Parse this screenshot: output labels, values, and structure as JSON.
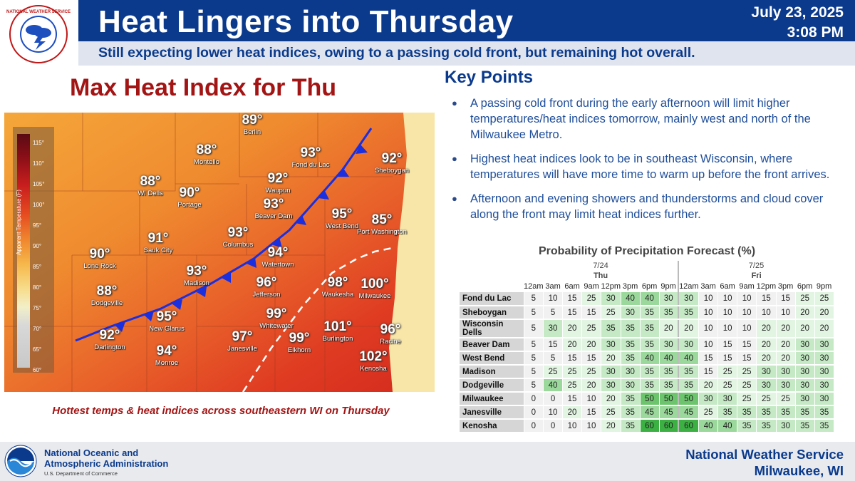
{
  "header": {
    "title": "Heat Lingers into Thursday",
    "date": "July 23, 2025",
    "time": "3:08 PM",
    "subtitle": "Still expecting lower heat indices, owing to a passing cold front, but remaining hot overall.",
    "logo_text": "NATIONAL WEATHER SERVICE"
  },
  "map": {
    "title": "Max Heat Index for Thu",
    "caption": "Hottest temps & heat indices across southeastern WI on Thursday",
    "legend": {
      "label": "Apparent Temperature (F)",
      "ticks": [
        "115°",
        "110°",
        "105°",
        "100°",
        "95°",
        "90°",
        "85°",
        "80°",
        "75°",
        "70°",
        "65°",
        "60°"
      ]
    },
    "cities": [
      {
        "name": "Berlin",
        "value": "89°"
      },
      {
        "name": "Montello",
        "value": "88°"
      },
      {
        "name": "Fond du Lac",
        "value": "93°"
      },
      {
        "name": "Sheboygan",
        "value": "92°"
      },
      {
        "name": "WI Dells",
        "value": "88°"
      },
      {
        "name": "Portage",
        "value": "90°"
      },
      {
        "name": "Waupun",
        "value": "92°"
      },
      {
        "name": "Beaver Dam",
        "value": "93°"
      },
      {
        "name": "West Bend",
        "value": "95°"
      },
      {
        "name": "Port Washington",
        "value": "85°"
      },
      {
        "name": "Sauk City",
        "value": "91°"
      },
      {
        "name": "Columbus",
        "value": "93°"
      },
      {
        "name": "Lone Rock",
        "value": "90°"
      },
      {
        "name": "Watertown",
        "value": "94°"
      },
      {
        "name": "Madison",
        "value": "93°"
      },
      {
        "name": "Dodgeville",
        "value": "88°"
      },
      {
        "name": "Jefferson",
        "value": "96°"
      },
      {
        "name": "Waukesha",
        "value": "98°"
      },
      {
        "name": "Milwaukee",
        "value": "100°"
      },
      {
        "name": "New Glarus",
        "value": "95°"
      },
      {
        "name": "Whitewater",
        "value": "99°"
      },
      {
        "name": "Darlington",
        "value": "92°"
      },
      {
        "name": "Monroe",
        "value": "94°"
      },
      {
        "name": "Janesville",
        "value": "97°"
      },
      {
        "name": "Elkhorn",
        "value": "99°"
      },
      {
        "name": "Burlington",
        "value": "101°"
      },
      {
        "name": "Racine",
        "value": "96°"
      },
      {
        "name": "Kenosha",
        "value": "102°"
      }
    ]
  },
  "key_points": {
    "title": "Key Points",
    "items": [
      "A passing cold front during the early afternoon will limit higher temperatures/heat indices tomorrow, mainly west and north of the Milwaukee Metro.",
      "Highest heat indices look to be in southeast Wisconsin, where temperatures will have more time to warm up before the front arrives.",
      "Afternoon and evening showers and thunderstorms and cloud cover along the front may limit heat indices further."
    ]
  },
  "pop_table": {
    "title": "Probability of Precipitation Forecast (%)",
    "days": [
      {
        "date": "7/24",
        "dow": "Thu"
      },
      {
        "date": "7/25",
        "dow": "Fri"
      }
    ],
    "hours": [
      "12am",
      "3am",
      "6am",
      "9am",
      "12pm",
      "3pm",
      "6pm",
      "9pm",
      "12am",
      "3am",
      "6am",
      "9am",
      "12pm",
      "3pm",
      "6pm",
      "9pm"
    ],
    "rows": [
      {
        "location": "Fond du Lac",
        "values": [
          5,
          10,
          15,
          25,
          30,
          40,
          40,
          30,
          30,
          10,
          10,
          10,
          15,
          15,
          25,
          25
        ]
      },
      {
        "location": "Sheboygan",
        "values": [
          5,
          5,
          15,
          15,
          25,
          30,
          35,
          35,
          35,
          10,
          10,
          10,
          10,
          10,
          20,
          20
        ]
      },
      {
        "location": "Wisconsin Dells",
        "values": [
          5,
          30,
          20,
          25,
          35,
          35,
          35,
          20,
          20,
          10,
          10,
          10,
          20,
          20,
          20,
          20
        ]
      },
      {
        "location": "Beaver Dam",
        "values": [
          5,
          15,
          20,
          20,
          30,
          35,
          35,
          30,
          30,
          10,
          15,
          15,
          20,
          20,
          30,
          30
        ]
      },
      {
        "location": "West Bend",
        "values": [
          5,
          5,
          15,
          15,
          20,
          35,
          40,
          40,
          40,
          15,
          15,
          15,
          20,
          20,
          30,
          30
        ]
      },
      {
        "location": "Madison",
        "values": [
          5,
          25,
          25,
          25,
          30,
          30,
          35,
          35,
          35,
          15,
          25,
          25,
          30,
          30,
          30,
          30
        ]
      },
      {
        "location": "Dodgeville",
        "values": [
          5,
          40,
          25,
          20,
          30,
          30,
          35,
          35,
          35,
          20,
          25,
          25,
          30,
          30,
          30,
          30
        ]
      },
      {
        "location": "Milwaukee",
        "values": [
          0,
          0,
          15,
          10,
          20,
          35,
          50,
          50,
          50,
          30,
          30,
          25,
          25,
          25,
          30,
          30
        ]
      },
      {
        "location": "Janesville",
        "values": [
          0,
          10,
          20,
          15,
          25,
          35,
          45,
          45,
          45,
          25,
          35,
          35,
          35,
          35,
          35,
          35
        ]
      },
      {
        "location": "Kenosha",
        "values": [
          0,
          0,
          10,
          10,
          20,
          35,
          60,
          60,
          60,
          40,
          40,
          35,
          35,
          30,
          35,
          35
        ]
      }
    ]
  },
  "footer": {
    "agency_line1": "National Oceanic and",
    "agency_line2": "Atmospheric Administration",
    "agency_sub": "U.S. Department of Commerce",
    "office_line1": "National Weather Service",
    "office_line2": "Milwaukee, WI"
  },
  "colors": {
    "brand_blue": "#0b3a8c",
    "title_red": "#a31414",
    "front_blue": "#1a2fe0"
  }
}
